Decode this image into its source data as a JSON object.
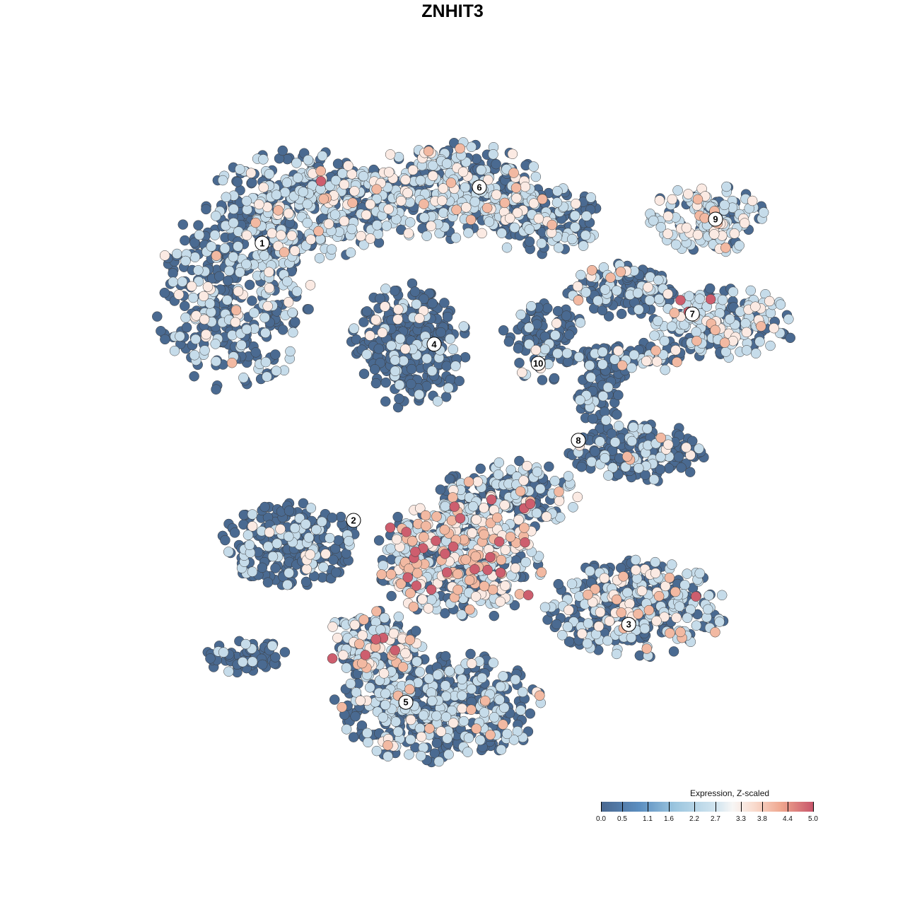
{
  "chart_data": {
    "type": "scatter",
    "title": "ZNHIT3",
    "xlabel": "",
    "ylabel": "",
    "grid": false,
    "axes_visible": false,
    "legend": {
      "title": "Expression, Z-scaled",
      "placement": "bottom-right",
      "ticks": [
        "0.0",
        "0.5",
        "1.1",
        "1.6",
        "2.2",
        "2.7",
        "3.3",
        "3.8",
        "4.4",
        "5.0"
      ],
      "range": [
        0,
        5
      ],
      "colors": [
        "#4a6890",
        "#5b8ec0",
        "#9cc6df",
        "#d4e6f0",
        "#f7f6f5",
        "#f9dccf",
        "#efa68e",
        "#c8566b"
      ]
    },
    "expression_levels": [
      0.0,
      1.9,
      2.9,
      3.6,
      4.6
    ],
    "level_colors": [
      "#4a6a91",
      "#c6dcea",
      "#fbeae3",
      "#f2b9a2",
      "#cd5e6e"
    ],
    "clusters": [
      {
        "label": "1",
        "x": -6.73,
        "y": 7.4
      },
      {
        "label": "2",
        "x": -3.5,
        "y": -2.4
      },
      {
        "label": "3",
        "x": 6.23,
        "y": -6.08
      },
      {
        "label": "4",
        "x": -0.65,
        "y": 3.83
      },
      {
        "label": "5",
        "x": -1.65,
        "y": -8.83
      },
      {
        "label": "6",
        "x": 0.95,
        "y": 9.38
      },
      {
        "label": "7",
        "x": 8.48,
        "y": 4.9
      },
      {
        "label": "8",
        "x": 4.45,
        "y": 0.43
      },
      {
        "label": "9",
        "x": 9.3,
        "y": 8.25
      },
      {
        "label": "10",
        "x": 3.03,
        "y": 3.15
      }
    ],
    "point_groups": [
      {
        "cx": -7.75,
        "cy": 5.5,
        "sx": 2.75,
        "sy": 3.5,
        "n": 380,
        "mix": [
          0.62,
          0.32,
          0.05,
          0.01,
          0
        ]
      },
      {
        "cx": -5,
        "cy": 8.75,
        "sx": 3.75,
        "sy": 2,
        "n": 380,
        "mix": [
          0.4,
          0.47,
          0.09,
          0.035,
          0.005
        ]
      },
      {
        "cx": 0,
        "cy": 9.25,
        "sx": 3.5,
        "sy": 1.75,
        "n": 360,
        "mix": [
          0.4,
          0.48,
          0.09,
          0.03,
          0
        ]
      },
      {
        "cx": 3.25,
        "cy": 8.25,
        "sx": 2.25,
        "sy": 1.25,
        "n": 150,
        "mix": [
          0.5,
          0.42,
          0.06,
          0.02,
          0
        ]
      },
      {
        "cx": -1.5,
        "cy": 3.75,
        "sx": 2.1,
        "sy": 2.25,
        "n": 320,
        "mix": [
          0.85,
          0.13,
          0.02,
          0,
          0
        ]
      },
      {
        "cx": 9,
        "cy": 8.25,
        "sx": 2.1,
        "sy": 1.25,
        "n": 160,
        "mix": [
          0.35,
          0.52,
          0.1,
          0.03,
          0
        ]
      },
      {
        "cx": 9.5,
        "cy": 4.6,
        "sx": 2.75,
        "sy": 1.25,
        "n": 200,
        "mix": [
          0.35,
          0.5,
          0.1,
          0.04,
          0.01
        ]
      },
      {
        "cx": 6,
        "cy": 5.75,
        "sx": 2,
        "sy": 1,
        "n": 120,
        "mix": [
          0.6,
          0.33,
          0.05,
          0.02,
          0
        ]
      },
      {
        "cx": 3.25,
        "cy": 4,
        "sx": 1.5,
        "sy": 1.5,
        "n": 100,
        "mix": [
          0.78,
          0.18,
          0.04,
          0,
          0
        ]
      },
      {
        "cx": 5.25,
        "cy": 2.25,
        "sx": 0.9,
        "sy": 1.5,
        "n": 80,
        "mix": [
          0.9,
          0.1,
          0,
          0,
          0
        ]
      },
      {
        "cx": 6.5,
        "cy": 0,
        "sx": 2.5,
        "sy": 1.1,
        "n": 190,
        "mix": [
          0.78,
          0.19,
          0.02,
          0.01,
          0
        ]
      },
      {
        "cx": 6.5,
        "cy": 3.4,
        "sx": 1.8,
        "sy": 0.6,
        "n": 60,
        "mix": [
          0.5,
          0.4,
          0.07,
          0.03,
          0
        ]
      },
      {
        "cx": -5.75,
        "cy": -3.25,
        "sx": 2.5,
        "sy": 1.5,
        "n": 260,
        "mix": [
          0.78,
          0.19,
          0.03,
          0,
          0
        ]
      },
      {
        "cx": 0.25,
        "cy": -3.75,
        "sx": 3,
        "sy": 2.25,
        "n": 520,
        "mix": [
          0.33,
          0.36,
          0.15,
          0.11,
          0.05
        ]
      },
      {
        "cx": 2,
        "cy": -1.5,
        "sx": 2.5,
        "sy": 1.25,
        "n": 200,
        "mix": [
          0.6,
          0.3,
          0.06,
          0.03,
          0.01
        ]
      },
      {
        "cx": 6.5,
        "cy": -5.5,
        "sx": 3.25,
        "sy": 1.75,
        "n": 360,
        "mix": [
          0.55,
          0.36,
          0.05,
          0.03,
          0.01
        ]
      },
      {
        "cx": -0.5,
        "cy": -9,
        "sx": 3.75,
        "sy": 2,
        "n": 460,
        "mix": [
          0.6,
          0.33,
          0.04,
          0.03,
          0
        ]
      },
      {
        "cx": -2.75,
        "cy": -6.75,
        "sx": 1.75,
        "sy": 1.25,
        "n": 150,
        "mix": [
          0.4,
          0.38,
          0.12,
          0.08,
          0.02
        ]
      },
      {
        "cx": -7.25,
        "cy": -7.25,
        "sx": 1.5,
        "sy": 0.6,
        "n": 60,
        "mix": [
          0.85,
          0.15,
          0,
          0,
          0
        ]
      }
    ]
  }
}
